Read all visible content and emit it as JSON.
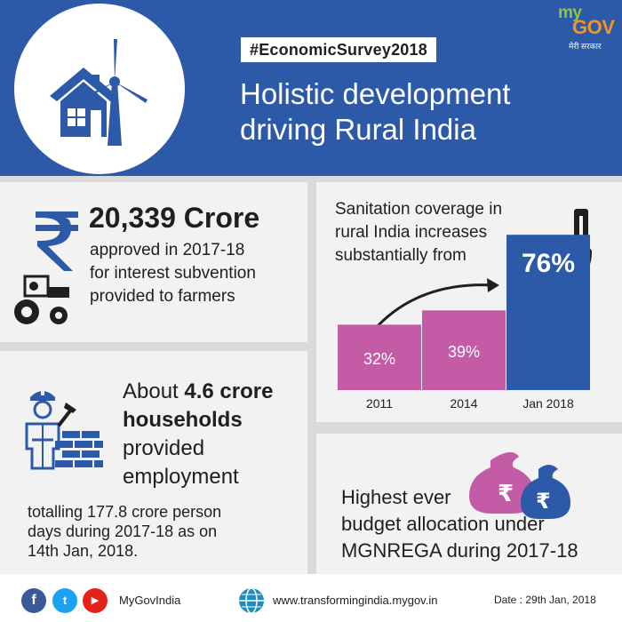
{
  "header": {
    "hashtag": "#EconomicSurvey2018",
    "headline_line1": "Holistic development",
    "headline_line2": "driving Rural India",
    "logo_my": "my",
    "logo_gov": "GOV",
    "logo_tagline": "मेरी सरकार",
    "icon": "house-wind-turbine-icon"
  },
  "interest": {
    "amount": "20,339 Crore",
    "line1": "approved in 2017-18",
    "line2": "for interest subvention",
    "line3": "provided to farmers",
    "icons": [
      "rupee-icon",
      "tractor-icon"
    ]
  },
  "employment": {
    "prefix": "About ",
    "highlight": "4.6 crore",
    "highlight2": "households",
    "rest_line1": "provided",
    "rest_line2": "employment",
    "sub_line1": "totalling 177.8 crore person",
    "sub_line2": "days during 2017-18 as on",
    "sub_line3": "14th Jan, 2018.",
    "icons": [
      "worker-icon",
      "brick-wall-icon"
    ]
  },
  "sanitation": {
    "title_line1": "Sanitation coverage in",
    "title_line2": "rural India increases",
    "title_line3": "substantially from",
    "icon": "toilet-icon"
  },
  "mgnrega": {
    "line1": "Highest ever",
    "line2": "budget allocation under",
    "line3": "MGNREGA during 2017-18",
    "icon": "money-bags-icon"
  },
  "footer": {
    "social_fb": "f",
    "social_tw": "t",
    "social_yt": "▶",
    "handle": "MyGovIndia",
    "url": "www.transformingindia.mygov.in",
    "date": "Date : 29th Jan, 2018"
  },
  "colors": {
    "header_blue": "#2c5aa8",
    "bar_pink": "#c45ba6",
    "bar_blue": "#2c5aa8",
    "body_grey": "#dadada",
    "panel_bg": "#f2f2f2"
  },
  "chart_data": {
    "type": "bar",
    "categories": [
      "2011",
      "2014",
      "Jan 2018"
    ],
    "values": [
      32,
      39,
      76
    ],
    "value_labels": [
      "32%",
      "39%",
      "76%"
    ],
    "title": "",
    "xlabel": "",
    "ylabel": "",
    "ylim": [
      0,
      100
    ],
    "unit": "%"
  }
}
